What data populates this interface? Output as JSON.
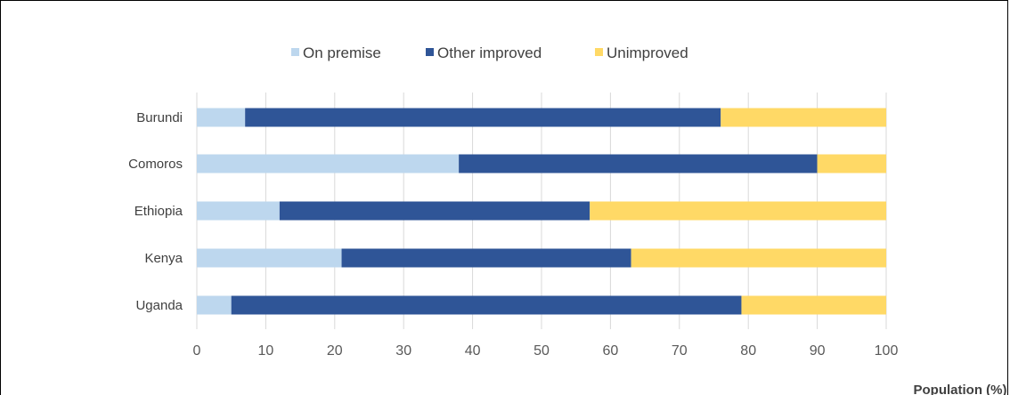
{
  "chart_data": {
    "type": "bar",
    "orientation": "horizontal",
    "stacked": true,
    "categories": [
      "Burundi",
      "Comoros",
      "Ethiopia",
      "Kenya",
      "Uganda"
    ],
    "series": [
      {
        "name": "On premise",
        "color": "#bdd7ee",
        "values": [
          7,
          38,
          12,
          21,
          5
        ]
      },
      {
        "name": "Other improved",
        "color": "#2f5597",
        "values": [
          69,
          52,
          45,
          42,
          74
        ]
      },
      {
        "name": "Unimproved",
        "color": "#ffd966",
        "values": [
          24,
          10,
          43,
          37,
          21
        ]
      }
    ],
    "xlabel": "Population (%)",
    "xlim": [
      0,
      100
    ],
    "xticks": [
      "0",
      "10",
      "20",
      "30",
      "40",
      "50",
      "60",
      "70",
      "80",
      "90",
      "100"
    ],
    "grid": true,
    "legend_position": "top"
  }
}
